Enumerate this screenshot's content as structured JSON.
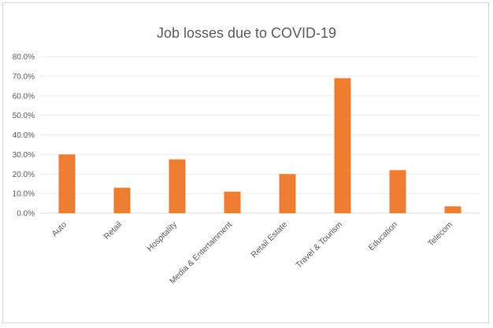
{
  "chart_data": {
    "type": "bar",
    "title": "Job losses due to COVID-19",
    "xlabel": "",
    "ylabel": "",
    "categories": [
      "Auto",
      "Retail",
      "Hospitality",
      "Media & Entertainment",
      "Retail Estate",
      "Travel & Tourism",
      "Education",
      "Telecom"
    ],
    "values": [
      30.0,
      13.0,
      27.5,
      11.0,
      20.0,
      69.0,
      22.0,
      3.5
    ],
    "ylim": [
      0,
      80
    ],
    "yticks": [
      "0.0%",
      "10.0%",
      "20.0%",
      "30.0%",
      "40.0%",
      "50.0%",
      "60.0%",
      "70.0%",
      "80.0%"
    ],
    "grid": true,
    "legend": "none",
    "bar_color": "#ED7D31"
  }
}
